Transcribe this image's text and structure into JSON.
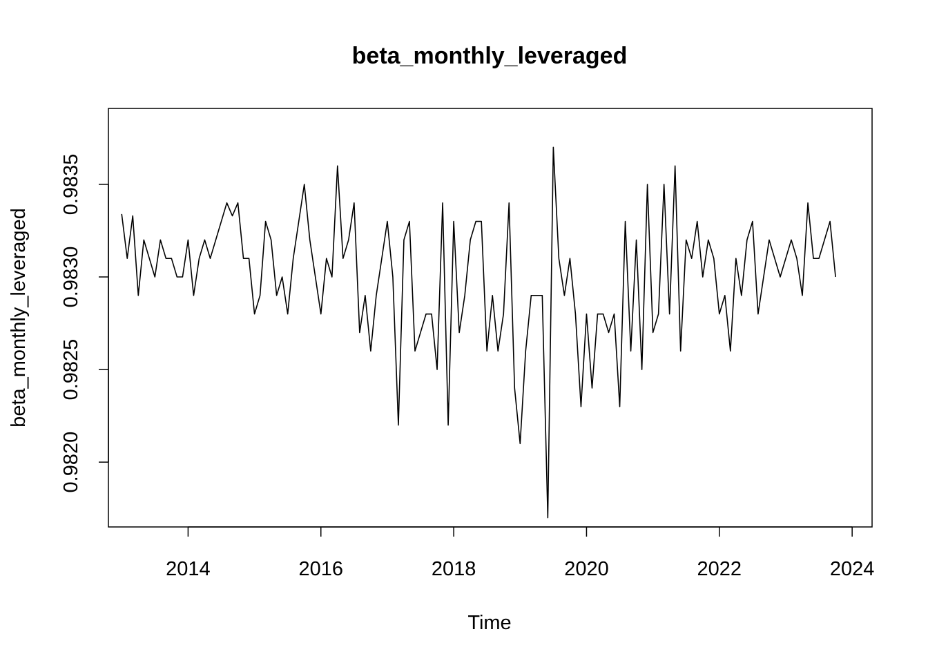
{
  "chart_data": {
    "type": "line",
    "title": "beta_monthly_leveraged",
    "xlabel": "Time",
    "ylabel": "beta_monthly_leveraged",
    "xlim": [
      2012.8,
      2024.3
    ],
    "ylim": [
      0.98165,
      0.98391
    ],
    "x_ticks": [
      2014,
      2016,
      2018,
      2020,
      2022,
      2024
    ],
    "x_tick_labels": [
      "2014",
      "2016",
      "2018",
      "2020",
      "2022",
      "2024"
    ],
    "y_ticks": [
      0.982,
      0.9825,
      0.983,
      0.9835
    ],
    "y_tick_labels": [
      "0.9820",
      "0.9825",
      "0.9830",
      "0.9835"
    ],
    "grid": false,
    "legend": "none",
    "line_color": "#000000",
    "x_start": 2013.0,
    "x_step_months": 1,
    "values": [
      0.98334,
      0.9831,
      0.98333,
      0.9829,
      0.9832,
      0.9831,
      0.983,
      0.9832,
      0.9831,
      0.9831,
      0.983,
      0.983,
      0.9832,
      0.9829,
      0.9831,
      0.9832,
      0.9831,
      0.9832,
      0.9833,
      0.9834,
      0.98333,
      0.9834,
      0.9831,
      0.9831,
      0.9828,
      0.9829,
      0.9833,
      0.9832,
      0.9829,
      0.983,
      0.9828,
      0.9831,
      0.9833,
      0.9835,
      0.9832,
      0.983,
      0.9828,
      0.9831,
      0.983,
      0.9836,
      0.9831,
      0.9832,
      0.9834,
      0.9827,
      0.9829,
      0.9826,
      0.9829,
      0.9831,
      0.9833,
      0.983,
      0.9822,
      0.9832,
      0.9833,
      0.9826,
      0.9827,
      0.9828,
      0.9828,
      0.9825,
      0.9834,
      0.9822,
      0.9833,
      0.9827,
      0.9829,
      0.9832,
      0.9833,
      0.9833,
      0.9826,
      0.9829,
      0.9826,
      0.9828,
      0.9834,
      0.9824,
      0.9821,
      0.9826,
      0.9829,
      0.9829,
      0.9829,
      0.9817,
      0.9837,
      0.9831,
      0.9829,
      0.9831,
      0.9828,
      0.9823,
      0.9828,
      0.9824,
      0.9828,
      0.9828,
      0.9827,
      0.9828,
      0.9823,
      0.9833,
      0.9826,
      0.9832,
      0.9825,
      0.9835,
      0.9827,
      0.9828,
      0.9835,
      0.9828,
      0.9836,
      0.9826,
      0.9832,
      0.9831,
      0.9833,
      0.983,
      0.9832,
      0.9831,
      0.9828,
      0.9829,
      0.9826,
      0.9831,
      0.9829,
      0.9832,
      0.9833,
      0.9828,
      0.983,
      0.9832,
      0.9831,
      0.983,
      0.9831,
      0.9832,
      0.9831,
      0.9829,
      0.9834,
      0.9831,
      0.9831,
      0.9832,
      0.9833,
      0.983
    ]
  }
}
